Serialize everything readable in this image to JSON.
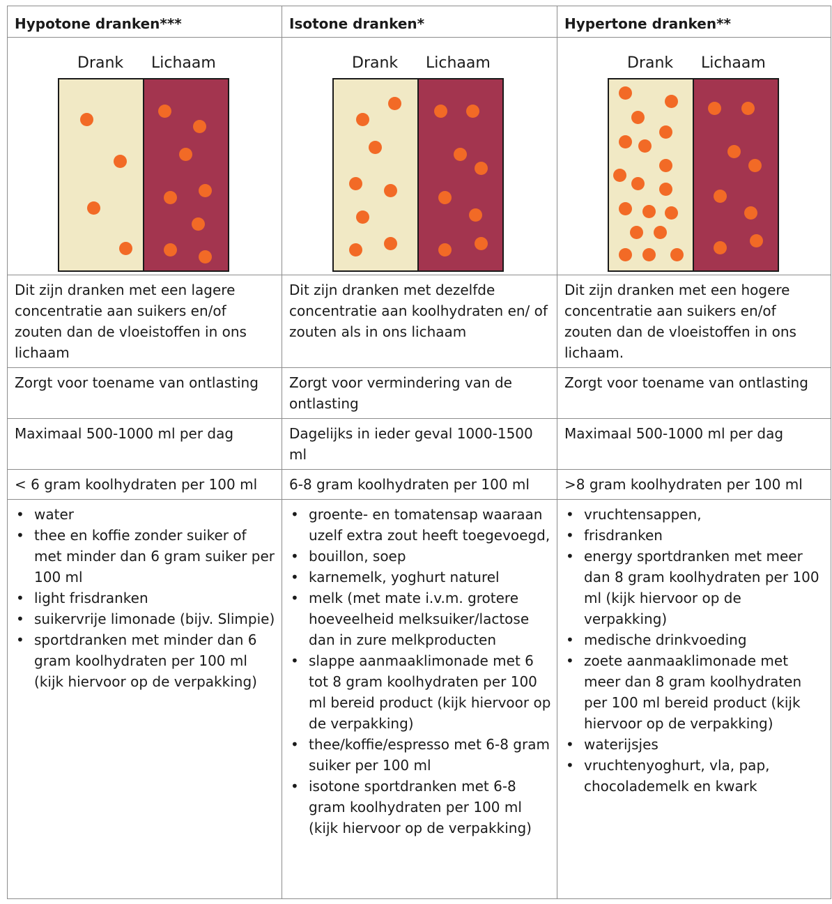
{
  "headers": [
    "Hypotone dranken***",
    "Isotone dranken*",
    "Hypertone dranken**"
  ],
  "diagram": {
    "drank_label": "Drank",
    "body_label": "Lichaam",
    "colors": {
      "drink": "#f1e9c5",
      "body": "#a3354f",
      "particle": "#f26a26"
    }
  },
  "rows": {
    "description": [
      "Dit zijn dranken met een lagere concentratie aan suikers en/of zouten dan de vloeistoffen in ons lichaam",
      "Dit zijn dranken met dezelfde concentratie aan koolhydraten en/ of zouten als in ons lichaam",
      "Dit zijn dranken met een hogere concentratie aan suikers en/of zouten dan de vloeistoffen in ons lichaam."
    ],
    "effect": [
      "Zorgt voor toename van ontlasting",
      "Zorgt voor vermindering van de ontlasting",
      "Zorgt voor toename van ontlasting"
    ],
    "amount": [
      "Maximaal 500-1000 ml per dag",
      "Dagelijks in ieder geval 1000-1500 ml",
      "Maximaal 500-1000 ml per dag"
    ],
    "carbs": [
      "< 6 gram koolhydraten per 100 ml",
      "6-8 gram koolhydraten per 100 ml",
      ">8 gram koolhydraten per 100 ml"
    ]
  },
  "examples": [
    [
      "water",
      "thee en koffie zonder suiker of met minder dan 6 gram suiker per 100 ml",
      "light frisdranken",
      "suikervrije limonade (bijv. Slimpie)",
      "sportdranken met minder dan 6 gram koolhydraten per 100 ml (kijk hiervoor op de verpakking)"
    ],
    [
      "groente- en tomatensap waaraan uzelf extra zout heeft toegevoegd,",
      "bouillon, soep",
      "karnemelk, yoghurt naturel",
      "melk (met mate i.v.m. grotere hoeveelheid melksuiker/lactose dan in zure melkproducten",
      "slappe aanmaaklimonade met 6 tot 8 gram koolhydraten per 100 ml bereid product (kijk hiervoor op de verpakking)",
      "thee/koffie/espresso met 6-8 gram suiker per 100 ml",
      "isotone sportdranken met 6-8 gram koolhydraten per 100 ml (kijk hiervoor op de verpakking)"
    ],
    [
      "vruchtensappen,",
      "frisdranken",
      "energy sportdranken met meer dan 8 gram koolhydraten per 100 ml (kijk hiervoor op de verpakking)",
      "medische drinkvoeding",
      "zoete aanmaaklimonade met meer dan 8 gram koolhydraten per 100 ml bereid product (kijk hiervoor op de verpakking)",
      "waterijsjes",
      "vruchtenyoghurt, vla, pap, chocolademelk en kwark"
    ]
  ]
}
